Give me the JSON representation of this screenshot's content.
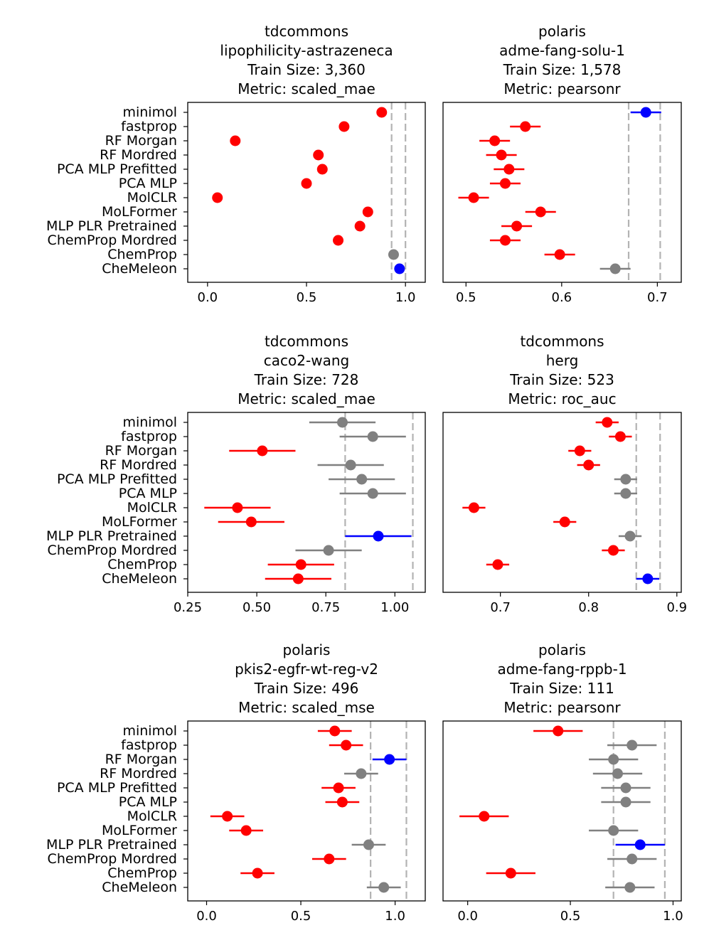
{
  "colors": {
    "red": "#ff0000",
    "grey": "#808080",
    "blue": "#0000ff",
    "reference_line": "#b3b3b3"
  },
  "models": [
    "minimol",
    "fastprop",
    "RF Morgan",
    "RF Mordred",
    "PCA MLP Prefitted",
    "PCA MLP",
    "MolCLR",
    "MoLFormer",
    "MLP PLR Pretrained",
    "ChemProp Mordred",
    "ChemProp",
    "CheMeleon"
  ],
  "chart_data": [
    {
      "type": "scatter",
      "source": "tdcommons",
      "dataset": "lipophilicity-astrazeneca",
      "train_size_label": "Train Size: 3,360",
      "metric_label": "Metric: scaled_mae",
      "xlim": [
        -0.1,
        1.1
      ],
      "xticks": [
        0.0,
        0.5,
        1.0
      ],
      "xtick_labels": [
        "0.0",
        "0.5",
        "1.0"
      ],
      "reference_lines": [
        0.93,
        1.0
      ],
      "points": [
        {
          "model": "minimol",
          "value": 0.88,
          "err": 0.02,
          "color": "red"
        },
        {
          "model": "fastprop",
          "value": 0.69,
          "err": 0.02,
          "color": "red"
        },
        {
          "model": "RF Morgan",
          "value": 0.14,
          "err": 0.02,
          "color": "red"
        },
        {
          "model": "RF Mordred",
          "value": 0.56,
          "err": 0.02,
          "color": "red"
        },
        {
          "model": "PCA MLP Prefitted",
          "value": 0.58,
          "err": 0.02,
          "color": "red"
        },
        {
          "model": "PCA MLP",
          "value": 0.5,
          "err": 0.02,
          "color": "red"
        },
        {
          "model": "MolCLR",
          "value": 0.05,
          "err": 0.02,
          "color": "red"
        },
        {
          "model": "MoLFormer",
          "value": 0.81,
          "err": 0.02,
          "color": "red"
        },
        {
          "model": "MLP PLR Pretrained",
          "value": 0.77,
          "err": 0.02,
          "color": "red"
        },
        {
          "model": "ChemProp Mordred",
          "value": 0.66,
          "err": 0.02,
          "color": "red"
        },
        {
          "model": "ChemProp",
          "value": 0.94,
          "err": 0.02,
          "color": "grey"
        },
        {
          "model": "CheMeleon",
          "value": 0.97,
          "err": 0.02,
          "color": "blue"
        }
      ]
    },
    {
      "type": "scatter",
      "source": "polaris",
      "dataset": "adme-fang-solu-1",
      "train_size_label": "Train Size: 1,578",
      "metric_label": "Metric: pearsonr",
      "xlim": [
        0.476,
        0.725
      ],
      "xticks": [
        0.5,
        0.6,
        0.7
      ],
      "xtick_labels": [
        "0.5",
        "0.6",
        "0.7"
      ],
      "reference_lines": [
        0.67,
        0.703
      ],
      "points": [
        {
          "model": "minimol",
          "value": 0.688,
          "err": 0.016,
          "color": "blue"
        },
        {
          "model": "fastprop",
          "value": 0.562,
          "err": 0.016,
          "color": "red"
        },
        {
          "model": "RF Morgan",
          "value": 0.53,
          "err": 0.016,
          "color": "red"
        },
        {
          "model": "RF Mordred",
          "value": 0.537,
          "err": 0.016,
          "color": "red"
        },
        {
          "model": "PCA MLP Prefitted",
          "value": 0.545,
          "err": 0.016,
          "color": "red"
        },
        {
          "model": "PCA MLP",
          "value": 0.541,
          "err": 0.016,
          "color": "red"
        },
        {
          "model": "MolCLR",
          "value": 0.508,
          "err": 0.016,
          "color": "red"
        },
        {
          "model": "MoLFormer",
          "value": 0.578,
          "err": 0.016,
          "color": "red"
        },
        {
          "model": "MLP PLR Pretrained",
          "value": 0.553,
          "err": 0.016,
          "color": "red"
        },
        {
          "model": "ChemProp Mordred",
          "value": 0.541,
          "err": 0.016,
          "color": "red"
        },
        {
          "model": "ChemProp",
          "value": 0.598,
          "err": 0.016,
          "color": "red"
        },
        {
          "model": "CheMeleon",
          "value": 0.656,
          "err": 0.016,
          "color": "grey"
        }
      ]
    },
    {
      "type": "scatter",
      "source": "tdcommons",
      "dataset": "caco2-wang",
      "train_size_label": "Train Size: 728",
      "metric_label": "Metric: scaled_mae",
      "xlim": [
        0.25,
        1.11
      ],
      "xticks": [
        0.25,
        0.5,
        0.75,
        1.0
      ],
      "xtick_labels": [
        "0.25",
        "0.50",
        "0.75",
        "1.00"
      ],
      "reference_lines": [
        0.82,
        1.065
      ],
      "points": [
        {
          "model": "minimol",
          "value": 0.81,
          "err": 0.12,
          "color": "grey"
        },
        {
          "model": "fastprop",
          "value": 0.92,
          "err": 0.12,
          "color": "grey"
        },
        {
          "model": "RF Morgan",
          "value": 0.52,
          "err": 0.12,
          "color": "red"
        },
        {
          "model": "RF Mordred",
          "value": 0.84,
          "err": 0.12,
          "color": "grey"
        },
        {
          "model": "PCA MLP Prefitted",
          "value": 0.88,
          "err": 0.12,
          "color": "grey"
        },
        {
          "model": "PCA MLP",
          "value": 0.92,
          "err": 0.12,
          "color": "grey"
        },
        {
          "model": "MolCLR",
          "value": 0.43,
          "err": 0.12,
          "color": "red"
        },
        {
          "model": "MoLFormer",
          "value": 0.48,
          "err": 0.12,
          "color": "red"
        },
        {
          "model": "MLP PLR Pretrained",
          "value": 0.94,
          "err": 0.12,
          "color": "blue"
        },
        {
          "model": "ChemProp Mordred",
          "value": 0.76,
          "err": 0.12,
          "color": "grey"
        },
        {
          "model": "ChemProp",
          "value": 0.66,
          "err": 0.12,
          "color": "red"
        },
        {
          "model": "CheMeleon",
          "value": 0.65,
          "err": 0.12,
          "color": "red"
        }
      ]
    },
    {
      "type": "scatter",
      "source": "tdcommons",
      "dataset": "herg",
      "train_size_label": "Train Size: 523",
      "metric_label": "Metric: roc_auc",
      "xlim": [
        0.635,
        0.905
      ],
      "xticks": [
        0.7,
        0.8,
        0.9
      ],
      "xtick_labels": [
        "0.7",
        "0.8",
        "0.9"
      ],
      "reference_lines": [
        0.854,
        0.881
      ],
      "points": [
        {
          "model": "minimol",
          "value": 0.821,
          "err": 0.013,
          "color": "red"
        },
        {
          "model": "fastprop",
          "value": 0.836,
          "err": 0.013,
          "color": "red"
        },
        {
          "model": "RF Morgan",
          "value": 0.79,
          "err": 0.013,
          "color": "red"
        },
        {
          "model": "RF Mordred",
          "value": 0.8,
          "err": 0.013,
          "color": "red"
        },
        {
          "model": "PCA MLP Prefitted",
          "value": 0.842,
          "err": 0.013,
          "color": "grey"
        },
        {
          "model": "PCA MLP",
          "value": 0.842,
          "err": 0.013,
          "color": "grey"
        },
        {
          "model": "MolCLR",
          "value": 0.67,
          "err": 0.013,
          "color": "red"
        },
        {
          "model": "MoLFormer",
          "value": 0.773,
          "err": 0.013,
          "color": "red"
        },
        {
          "model": "MLP PLR Pretrained",
          "value": 0.847,
          "err": 0.013,
          "color": "grey"
        },
        {
          "model": "ChemProp Mordred",
          "value": 0.828,
          "err": 0.013,
          "color": "red"
        },
        {
          "model": "ChemProp",
          "value": 0.697,
          "err": 0.013,
          "color": "red"
        },
        {
          "model": "CheMeleon",
          "value": 0.867,
          "err": 0.013,
          "color": "blue"
        }
      ]
    },
    {
      "type": "scatter",
      "source": "polaris",
      "dataset": "pkis2-egfr-wt-reg-v2",
      "train_size_label": "Train Size: 496",
      "metric_label": "Metric: scaled_mse",
      "xlim": [
        -0.1,
        1.16
      ],
      "xticks": [
        0.0,
        0.5,
        1.0
      ],
      "xtick_labels": [
        "0.0",
        "0.5",
        "1.0"
      ],
      "reference_lines": [
        0.87,
        1.06
      ],
      "points": [
        {
          "model": "minimol",
          "value": 0.68,
          "err": 0.09,
          "color": "red"
        },
        {
          "model": "fastprop",
          "value": 0.74,
          "err": 0.09,
          "color": "red"
        },
        {
          "model": "RF Morgan",
          "value": 0.97,
          "err": 0.09,
          "color": "blue"
        },
        {
          "model": "RF Mordred",
          "value": 0.82,
          "err": 0.09,
          "color": "grey"
        },
        {
          "model": "PCA MLP Prefitted",
          "value": 0.7,
          "err": 0.09,
          "color": "red"
        },
        {
          "model": "PCA MLP",
          "value": 0.72,
          "err": 0.09,
          "color": "red"
        },
        {
          "model": "MolCLR",
          "value": 0.11,
          "err": 0.09,
          "color": "red"
        },
        {
          "model": "MoLFormer",
          "value": 0.21,
          "err": 0.09,
          "color": "red"
        },
        {
          "model": "MLP PLR Pretrained",
          "value": 0.86,
          "err": 0.09,
          "color": "grey"
        },
        {
          "model": "ChemProp Mordred",
          "value": 0.65,
          "err": 0.09,
          "color": "red"
        },
        {
          "model": "ChemProp",
          "value": 0.27,
          "err": 0.09,
          "color": "red"
        },
        {
          "model": "CheMeleon",
          "value": 0.94,
          "err": 0.09,
          "color": "grey"
        }
      ]
    },
    {
      "type": "scatter",
      "source": "polaris",
      "dataset": "adme-fang-rppb-1",
      "train_size_label": "Train Size: 111",
      "metric_label": "Metric: pearsonr",
      "xlim": [
        -0.12,
        1.04
      ],
      "xticks": [
        0.0,
        0.5,
        1.0
      ],
      "xtick_labels": [
        "0.0",
        "0.5",
        "1.0"
      ],
      "reference_lines": [
        0.71,
        0.96
      ],
      "points": [
        {
          "model": "minimol",
          "value": 0.44,
          "err": 0.12,
          "color": "red"
        },
        {
          "model": "fastprop",
          "value": 0.8,
          "err": 0.12,
          "color": "grey"
        },
        {
          "model": "RF Morgan",
          "value": 0.71,
          "err": 0.12,
          "color": "grey"
        },
        {
          "model": "RF Mordred",
          "value": 0.73,
          "err": 0.12,
          "color": "grey"
        },
        {
          "model": "PCA MLP Prefitted",
          "value": 0.77,
          "err": 0.12,
          "color": "grey"
        },
        {
          "model": "PCA MLP",
          "value": 0.77,
          "err": 0.12,
          "color": "grey"
        },
        {
          "model": "MolCLR",
          "value": 0.08,
          "err": 0.12,
          "color": "red"
        },
        {
          "model": "MoLFormer",
          "value": 0.71,
          "err": 0.12,
          "color": "grey"
        },
        {
          "model": "MLP PLR Pretrained",
          "value": 0.84,
          "err": 0.12,
          "color": "blue"
        },
        {
          "model": "ChemProp Mordred",
          "value": 0.8,
          "err": 0.12,
          "color": "grey"
        },
        {
          "model": "ChemProp",
          "value": 0.21,
          "err": 0.12,
          "color": "red"
        },
        {
          "model": "CheMeleon",
          "value": 0.79,
          "err": 0.12,
          "color": "grey"
        }
      ]
    }
  ]
}
